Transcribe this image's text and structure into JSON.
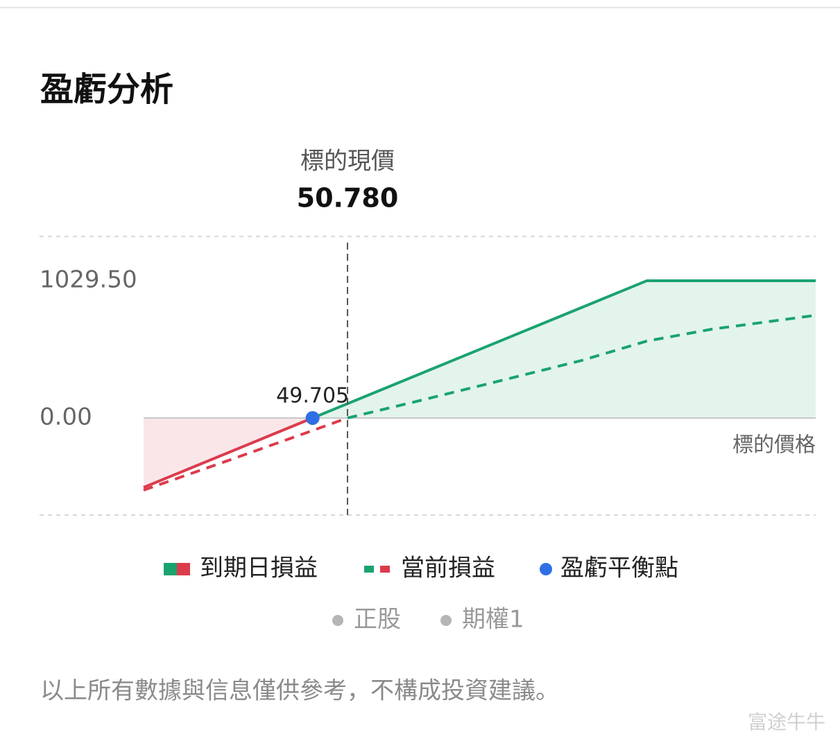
{
  "title": "盈虧分析",
  "chart_data": {
    "type": "line",
    "x_label": "標的價格",
    "xlim": [
      44.5,
      65.2
    ],
    "ylim": [
      -728,
      1362
    ],
    "yticks": [
      {
        "value": 0,
        "label": "0.00"
      },
      {
        "value": 1029.5,
        "label": "1029.50"
      }
    ],
    "series": [
      {
        "name": "到期日損益",
        "color": "#1aa36f",
        "negative_color": "#dc3b4c",
        "dashed": false,
        "x": [
          44.5,
          49.705,
          60,
          65.2
        ],
        "values": [
          -520.5,
          0,
          1029.5,
          1029.5
        ]
      },
      {
        "name": "當前損益",
        "color": "#1aa36f",
        "negative_color": "#dc3b4c",
        "dashed": true,
        "x": [
          44.5,
          47,
          49.705,
          50.78,
          53,
          55,
          58,
          60,
          62,
          65.2
        ],
        "values": [
          -541,
          -328,
          -94,
          0,
          130,
          250,
          432,
          577,
          666,
          770
        ]
      }
    ],
    "breakeven": {
      "name": "盈虧平衡點",
      "x": 49.705,
      "value": 0,
      "color": "#2f6fe6"
    },
    "current_price": {
      "title": "標的現價",
      "value": 50.78,
      "label": "50.780"
    },
    "legend_extra": [
      "正股",
      "期權1"
    ]
  },
  "disclaimer": "以上所有數據與信息僅供參考，不構成投資建議。",
  "watermark": "富途牛牛"
}
